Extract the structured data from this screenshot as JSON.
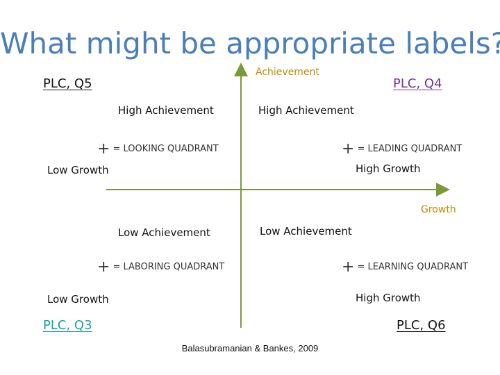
{
  "title": "What might be appropriate labels?",
  "axes": {
    "y_label": "Achievement",
    "x_label": "Growth",
    "axis_color": "#7a9a3a",
    "label_color": "#c08a00"
  },
  "corners": {
    "top_left": "PLC, Q5",
    "top_right": "PLC, Q4",
    "bottom_left": "PLC, Q3",
    "bottom_right": "PLC, Q6"
  },
  "quadrants": {
    "top_left": {
      "achievement": "High Achievement",
      "plus": "+",
      "name": "= LOOKING QUADRANT",
      "growth": "Low Growth"
    },
    "top_right": {
      "achievement": "High Achievement",
      "plus": "+",
      "name": "= LEADING QUADRANT",
      "growth": "High Growth"
    },
    "bottom_left": {
      "achievement": "Low Achievement",
      "plus": "+",
      "name": "= LABORING QUADRANT",
      "growth": "Low Growth"
    },
    "bottom_right": {
      "achievement": "Low Achievement",
      "plus": "+",
      "name": "= LEARNING QUADRANT",
      "growth": "High Growth"
    }
  },
  "citation": "Balasubramanian & Bankes, 2009"
}
